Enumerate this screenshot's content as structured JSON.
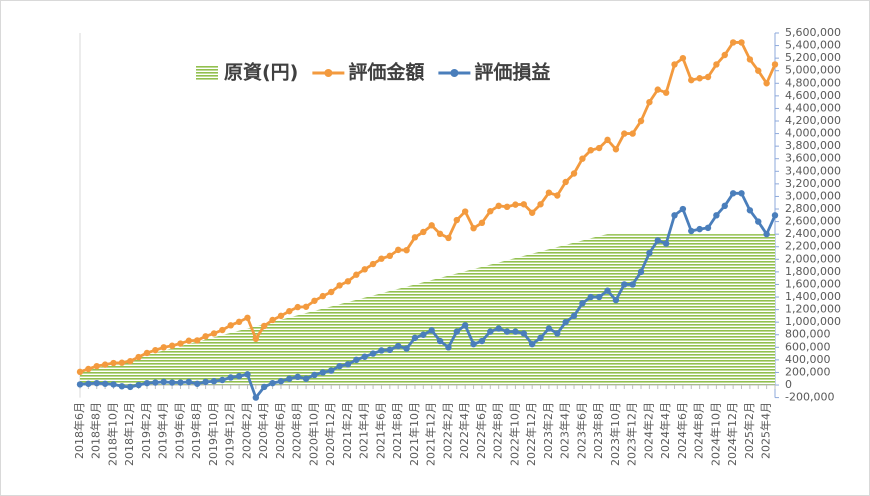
{
  "chart_data": {
    "type": "line",
    "categories": [
      "2018年6月",
      null,
      "2018年8月",
      null,
      "2018年10月",
      null,
      "2018年12月",
      null,
      "2019年2月",
      null,
      "2019年4月",
      null,
      "2019年6月",
      null,
      "2019年8月",
      null,
      "2019年10月",
      null,
      "2019年12月",
      null,
      "2020年2月",
      null,
      "2020年4月",
      null,
      "2020年6月",
      null,
      "2020年8月",
      null,
      "2020年10月",
      null,
      "2020年12月",
      null,
      "2021年2月",
      null,
      "2021年4月",
      null,
      "2021年6月",
      null,
      "2021年8月",
      null,
      "2021年10月",
      null,
      "2021年12月",
      null,
      "2022年2月",
      null,
      "2022年4月",
      null,
      "2022年6月",
      null,
      "2022年8月",
      null,
      "2022年10月",
      null,
      "2022年12月",
      null,
      "2023年2月",
      null,
      "2023年4月",
      null,
      "2023年6月",
      null,
      "2023年8月",
      null,
      "2023年10月",
      null,
      "2023年12月",
      null,
      "2024年2月",
      null,
      "2024年4月",
      null,
      "2024年6月",
      null,
      "2024年8月",
      null,
      "2024年10月",
      null,
      "2024年12月",
      null,
      "2025年2月",
      null,
      "2025年4月",
      null
    ],
    "series": [
      {
        "name": "原資(円)",
        "style": "area",
        "color": "#92c04f",
        "values": [
          200000,
          235000,
          270000,
          305000,
          340000,
          375000,
          410000,
          445000,
          480000,
          515000,
          550000,
          585000,
          620000,
          655000,
          690000,
          725000,
          760000,
          795000,
          830000,
          865000,
          900000,
          935000,
          970000,
          1005000,
          1040000,
          1075000,
          1110000,
          1145000,
          1180000,
          1215000,
          1250000,
          1285000,
          1320000,
          1355000,
          1390000,
          1425000,
          1460000,
          1495000,
          1530000,
          1565000,
          1600000,
          1635000,
          1670000,
          1705000,
          1740000,
          1775000,
          1810000,
          1845000,
          1880000,
          1915000,
          1950000,
          1985000,
          2020000,
          2055000,
          2090000,
          2125000,
          2160000,
          2195000,
          2230000,
          2265000,
          2300000,
          2335000,
          2370000,
          2400000,
          2400000,
          2400000,
          2400000,
          2400000,
          2400000,
          2400000,
          2400000,
          2400000,
          2400000,
          2400000,
          2400000,
          2400000,
          2400000,
          2400000,
          2400000,
          2400000,
          2400000,
          2400000,
          2400000,
          2400000
        ]
      },
      {
        "name": "評価金額",
        "style": "line",
        "color": "#f39a3e",
        "values": [
          210000,
          255000,
          300000,
          325000,
          350000,
          355000,
          380000,
          445000,
          510000,
          555000,
          600000,
          625000,
          660000,
          705000,
          710000,
          775000,
          820000,
          875000,
          950000,
          1005000,
          1070000,
          735000,
          940000,
          1035000,
          1100000,
          1175000,
          1240000,
          1245000,
          1340000,
          1415000,
          1480000,
          1585000,
          1650000,
          1755000,
          1840000,
          1925000,
          2010000,
          2055000,
          2150000,
          2145000,
          2350000,
          2435000,
          2540000,
          2405000,
          2340000,
          2625000,
          2760000,
          2495000,
          2580000,
          2765000,
          2850000,
          2835000,
          2870000,
          2875000,
          2740000,
          2875000,
          3060000,
          3015000,
          3230000,
          3365000,
          3600000,
          3735000,
          3770000,
          3900000,
          3750000,
          4000000,
          4000000,
          4200000,
          4500000,
          4700000,
          4650000,
          5100000,
          5200000,
          4850000,
          4880000,
          4900000,
          5100000,
          5250000,
          5450000,
          5450000,
          5180000,
          5000000,
          4800000,
          5100000
        ]
      },
      {
        "name": "評価損益",
        "style": "line",
        "color": "#4a7ebb",
        "values": [
          10000,
          20000,
          30000,
          20000,
          10000,
          -20000,
          -30000,
          0,
          30000,
          40000,
          50000,
          40000,
          40000,
          50000,
          20000,
          50000,
          60000,
          80000,
          120000,
          140000,
          170000,
          -200000,
          -30000,
          30000,
          60000,
          100000,
          130000,
          100000,
          160000,
          200000,
          230000,
          300000,
          330000,
          400000,
          450000,
          500000,
          550000,
          560000,
          620000,
          580000,
          750000,
          800000,
          870000,
          700000,
          600000,
          850000,
          950000,
          650000,
          700000,
          850000,
          900000,
          850000,
          850000,
          820000,
          650000,
          750000,
          900000,
          820000,
          1000000,
          1100000,
          1300000,
          1400000,
          1400000,
          1500000,
          1350000,
          1600000,
          1600000,
          1800000,
          2100000,
          2300000,
          2250000,
          2700000,
          2800000,
          2450000,
          2480000,
          2500000,
          2700000,
          2850000,
          3050000,
          3050000,
          2780000,
          2600000,
          2400000,
          2700000
        ]
      }
    ],
    "ylim": [
      -200000,
      5600000
    ],
    "yticks": [
      {
        "value": -200000,
        "label": "-200,000"
      },
      0,
      {
        "value": 200000,
        "label": "200,000"
      },
      {
        "value": 400000,
        "label": "400,000"
      },
      {
        "value": 600000,
        "label": "600,000"
      },
      {
        "value": 800000,
        "label": "800,000"
      },
      {
        "value": 1000000,
        "label": "1,000,000"
      },
      {
        "value": 1200000,
        "label": "1,200,000"
      },
      {
        "value": 1400000,
        "label": "1,400,000"
      },
      {
        "value": 1600000,
        "label": "1,600,000"
      },
      {
        "value": 1800000,
        "label": "1,800,000"
      },
      {
        "value": 2000000,
        "label": "2,000,000"
      },
      {
        "value": 2200000,
        "label": "2,200,000"
      },
      {
        "value": 2400000,
        "label": "2,400,000"
      },
      {
        "value": 2600000,
        "label": "2,600,000"
      },
      {
        "value": 2800000,
        "label": "2,800,000"
      },
      {
        "value": 3000000,
        "label": "3,000,000"
      },
      {
        "value": 3200000,
        "label": "3,200,000"
      },
      {
        "value": 3400000,
        "label": "3,400,000"
      },
      {
        "value": 3600000,
        "label": "3,600,000"
      },
      {
        "value": 3800000,
        "label": "3,800,000"
      },
      {
        "value": 4000000,
        "label": "4,000,000"
      },
      {
        "value": 4200000,
        "label": "4,200,000"
      },
      {
        "value": 4400000,
        "label": "4,400,000"
      },
      {
        "value": 4600000,
        "label": "4,600,000"
      },
      {
        "value": 4800000,
        "label": "4,800,000"
      },
      {
        "value": 5000000,
        "label": "5,000,000"
      },
      {
        "value": 5200000,
        "label": "5,200,000"
      },
      {
        "value": 5400000,
        "label": "5,400,000"
      },
      {
        "value": 5600000,
        "label": "5,600,000"
      }
    ],
    "y_axis_side": "right",
    "negative_tick_color": "#e00000",
    "legend": "top"
  }
}
